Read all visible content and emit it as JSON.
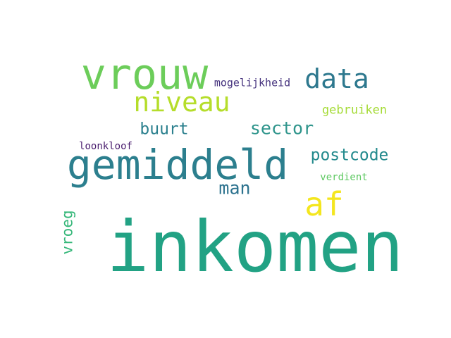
{
  "words": [
    {
      "id": "inkomen",
      "text": "inkomen",
      "color": "#22a284"
    },
    {
      "id": "gemiddeld",
      "text": "gemiddeld",
      "color": "#2c7f8e"
    },
    {
      "id": "vrouw",
      "text": "vrouw",
      "color": "#6ccd5a"
    },
    {
      "id": "niveau",
      "text": "niveau",
      "color": "#b5dd2b"
    },
    {
      "id": "data",
      "text": "data",
      "color": "#2d788e"
    },
    {
      "id": "af",
      "text": "af",
      "color": "#f4e61e"
    },
    {
      "id": "mogelijkheid",
      "text": "mogelijkheid",
      "color": "#46337e"
    },
    {
      "id": "sector",
      "text": "sector",
      "color": "#2f958c"
    },
    {
      "id": "buurt",
      "text": "buurt",
      "color": "#2b808e"
    },
    {
      "id": "postcode",
      "text": "postcode",
      "color": "#238a8d"
    },
    {
      "id": "gebruiken",
      "text": "gebruiken",
      "color": "#a5db36"
    },
    {
      "id": "man",
      "text": "man",
      "color": "#2c728e"
    },
    {
      "id": "loonkloof",
      "text": "loonkloof",
      "color": "#481b6d"
    },
    {
      "id": "verdient",
      "text": "verdient",
      "color": "#5ec962"
    },
    {
      "id": "vroeg",
      "text": "vroeg",
      "color": "#35b779"
    }
  ]
}
